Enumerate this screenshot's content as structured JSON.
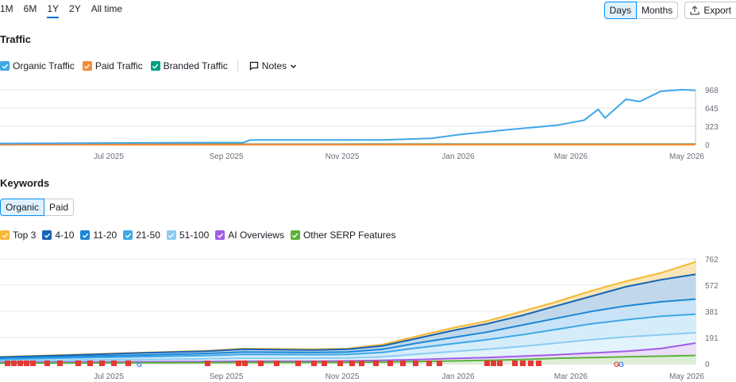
{
  "period_tabs": [
    {
      "label": "1M"
    },
    {
      "label": "6M"
    },
    {
      "label": "1Y",
      "active": true
    },
    {
      "label": "2Y"
    },
    {
      "label": "All time"
    }
  ],
  "view_toggle": {
    "days": "Days",
    "months": "Months",
    "active": "Days"
  },
  "export_label": "Export",
  "traffic": {
    "title": "Traffic",
    "legend": [
      {
        "label": "Organic Traffic",
        "color": "#3ea7e8",
        "checked": true
      },
      {
        "label": "Paid Traffic",
        "color": "#f28b38",
        "checked": true
      },
      {
        "label": "Branded Traffic",
        "color": "#009f81",
        "checked": true
      }
    ],
    "notes_label": "Notes"
  },
  "keywords": {
    "title": "Keywords",
    "tabs": [
      {
        "label": "Organic",
        "active": true
      },
      {
        "label": "Paid"
      }
    ],
    "legend": [
      {
        "label": "Top 3",
        "color": "#f7b731"
      },
      {
        "label": "4-10",
        "color": "#1663b5"
      },
      {
        "label": "11-20",
        "color": "#1a86d8"
      },
      {
        "label": "21-50",
        "color": "#3ea7e8"
      },
      {
        "label": "51-100",
        "color": "#8ccbf2"
      },
      {
        "label": "AI Overviews",
        "color": "#a25ce5"
      },
      {
        "label": "Other SERP Features",
        "color": "#5bb33b"
      }
    ]
  },
  "chart_data": [
    {
      "type": "line",
      "title": "Traffic",
      "x_ticks": [
        "Jul 2025",
        "Sep 2025",
        "Nov 2025",
        "Jan 2026",
        "Mar 2026",
        "May 2026"
      ],
      "y_ticks": [
        "968",
        "645",
        "323",
        "0"
      ],
      "ylim": [
        0,
        968
      ],
      "grid": true,
      "series": [
        {
          "name": "Organic Traffic",
          "color": "#3ea7e8",
          "x": [
            0,
            0.2,
            0.35,
            0.36,
            0.55,
            0.62,
            0.66,
            0.72,
            0.8,
            0.84,
            0.86,
            0.87,
            0.9,
            0.92,
            0.95,
            0.98,
            1.0
          ],
          "values": [
            20,
            30,
            35,
            80,
            80,
            110,
            175,
            250,
            340,
            430,
            620,
            470,
            800,
            760,
            940,
            968,
            960
          ]
        },
        {
          "name": "Paid Traffic",
          "color": "#f28b38",
          "x": [
            0,
            1
          ],
          "values": [
            0,
            0
          ]
        },
        {
          "name": "Branded Traffic",
          "color": "#009f81",
          "x": [
            0,
            1
          ],
          "values": [
            3,
            5
          ]
        }
      ]
    },
    {
      "type": "area",
      "title": "Keywords",
      "x_ticks": [
        "Jul 2025",
        "Sep 2025",
        "Nov 2025",
        "Jan 2026",
        "Mar 2026",
        "May 2026"
      ],
      "y_ticks": [
        "762",
        "572",
        "381",
        "191",
        "0"
      ],
      "ylim": [
        0,
        762
      ],
      "grid": true,
      "x": [
        0,
        0.1,
        0.2,
        0.3,
        0.35,
        0.45,
        0.5,
        0.55,
        0.6,
        0.65,
        0.7,
        0.75,
        0.8,
        0.85,
        0.9,
        0.95,
        1.0
      ],
      "series": [
        {
          "name": "Top 3",
          "color": "#f7b731",
          "values": [
            50,
            65,
            80,
            95,
            110,
            105,
            110,
            140,
            200,
            260,
            310,
            380,
            450,
            530,
            600,
            660,
            740
          ]
        },
        {
          "name": "4-10",
          "color": "#1663b5",
          "values": [
            48,
            62,
            78,
            92,
            105,
            100,
            105,
            130,
            185,
            240,
            290,
            350,
            420,
            490,
            560,
            610,
            650
          ]
        },
        {
          "name": "11-20",
          "color": "#1a86d8",
          "values": [
            40,
            52,
            62,
            75,
            85,
            82,
            85,
            105,
            150,
            190,
            230,
            280,
            330,
            380,
            420,
            450,
            470
          ]
        },
        {
          "name": "21-50",
          "color": "#3ea7e8",
          "values": [
            32,
            42,
            50,
            60,
            68,
            66,
            68,
            82,
            115,
            145,
            175,
            210,
            250,
            290,
            320,
            345,
            360
          ]
        },
        {
          "name": "51-100",
          "color": "#8ccbf2",
          "values": [
            20,
            26,
            30,
            36,
            40,
            40,
            42,
            50,
            70,
            88,
            105,
            125,
            150,
            175,
            195,
            210,
            225
          ]
        },
        {
          "name": "AI Overviews",
          "color": "#a25ce5",
          "values": [
            10,
            12,
            14,
            16,
            18,
            18,
            20,
            24,
            30,
            38,
            45,
            55,
            65,
            78,
            90,
            110,
            150
          ]
        },
        {
          "name": "Other SERP Features",
          "color": "#5bb33b",
          "values": [
            5,
            6,
            7,
            8,
            9,
            9,
            10,
            12,
            16,
            20,
            25,
            30,
            40,
            45,
            50,
            55,
            60
          ]
        }
      ]
    }
  ]
}
